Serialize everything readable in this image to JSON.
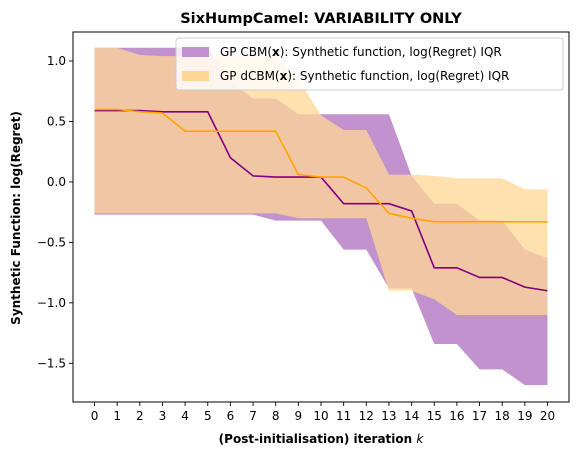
{
  "chart_data": {
    "type": "line",
    "title": "SixHumpCamel: VARIABILITY ONLY",
    "xlabel": "(Post-initialisation) iteration",
    "xlabel_var": "k",
    "ylabel": "Synthetic Function: log(Regret)",
    "xlim": [
      -0.95,
      20.95
    ],
    "ylim": [
      -1.82,
      1.24
    ],
    "x_ticks": [
      0,
      1,
      2,
      3,
      4,
      5,
      6,
      7,
      8,
      9,
      10,
      11,
      12,
      13,
      14,
      15,
      16,
      17,
      18,
      19,
      20
    ],
    "y_ticks": [
      -1.5,
      -1.0,
      -0.5,
      0.0,
      0.5,
      1.0
    ],
    "y_tick_labels": [
      "−1.5",
      "−1.0",
      "−0.5",
      "0.0",
      "0.5",
      "1.0"
    ],
    "grid": false,
    "legend_position": "top-right",
    "x": [
      0,
      1,
      2,
      3,
      4,
      5,
      6,
      7,
      8,
      9,
      10,
      11,
      12,
      13,
      14,
      15,
      16,
      17,
      18,
      19,
      20
    ],
    "series": [
      {
        "name_prefix": "GP CBM(",
        "name_bold": "x",
        "name_suffix": "):   Synthetic function, log(Regret) IQR",
        "color": "#800080",
        "band_color": "#c292cf",
        "median": [
          0.59,
          0.59,
          0.59,
          0.58,
          0.58,
          0.58,
          0.2,
          0.05,
          0.04,
          0.04,
          0.04,
          -0.18,
          -0.18,
          -0.18,
          -0.24,
          -0.71,
          -0.71,
          -0.79,
          -0.79,
          -0.87,
          -0.9
        ],
        "q1": [
          -0.27,
          -0.27,
          -0.27,
          -0.27,
          -0.27,
          -0.27,
          -0.27,
          -0.27,
          -0.32,
          -0.32,
          -0.32,
          -0.56,
          -0.56,
          -0.88,
          -0.88,
          -1.34,
          -1.34,
          -1.55,
          -1.55,
          -1.68,
          -1.68
        ],
        "q3": [
          1.11,
          1.11,
          1.11,
          1.11,
          1.11,
          1.11,
          0.83,
          0.69,
          0.69,
          0.56,
          0.56,
          0.56,
          0.56,
          0.56,
          0.05,
          -0.18,
          -0.18,
          -0.32,
          -0.32,
          -0.56,
          -0.63
        ]
      },
      {
        "name_prefix": "GP dCBM(",
        "name_bold": "x",
        "name_suffix": "): Synthetic function, log(Regret) IQR",
        "color": "#ffa500",
        "band_color": "#ffd795",
        "median": [
          0.6,
          0.6,
          0.58,
          0.57,
          0.42,
          0.42,
          0.42,
          0.42,
          0.42,
          0.06,
          0.04,
          0.04,
          -0.05,
          -0.26,
          -0.3,
          -0.33,
          -0.33,
          -0.33,
          -0.33,
          -0.33,
          -0.33
        ],
        "q1": [
          -0.26,
          -0.26,
          -0.26,
          -0.26,
          -0.26,
          -0.26,
          -0.26,
          -0.26,
          -0.26,
          -0.3,
          -0.3,
          -0.3,
          -0.3,
          -0.9,
          -0.9,
          -0.97,
          -1.1,
          -1.1,
          -1.1,
          -1.1,
          -1.1
        ],
        "q3": [
          1.11,
          1.11,
          1.05,
          1.04,
          1.04,
          1.04,
          1.04,
          1.04,
          1.04,
          0.85,
          0.55,
          0.43,
          0.43,
          0.06,
          0.06,
          0.05,
          0.03,
          0.03,
          0.03,
          -0.06,
          -0.06
        ]
      }
    ]
  }
}
